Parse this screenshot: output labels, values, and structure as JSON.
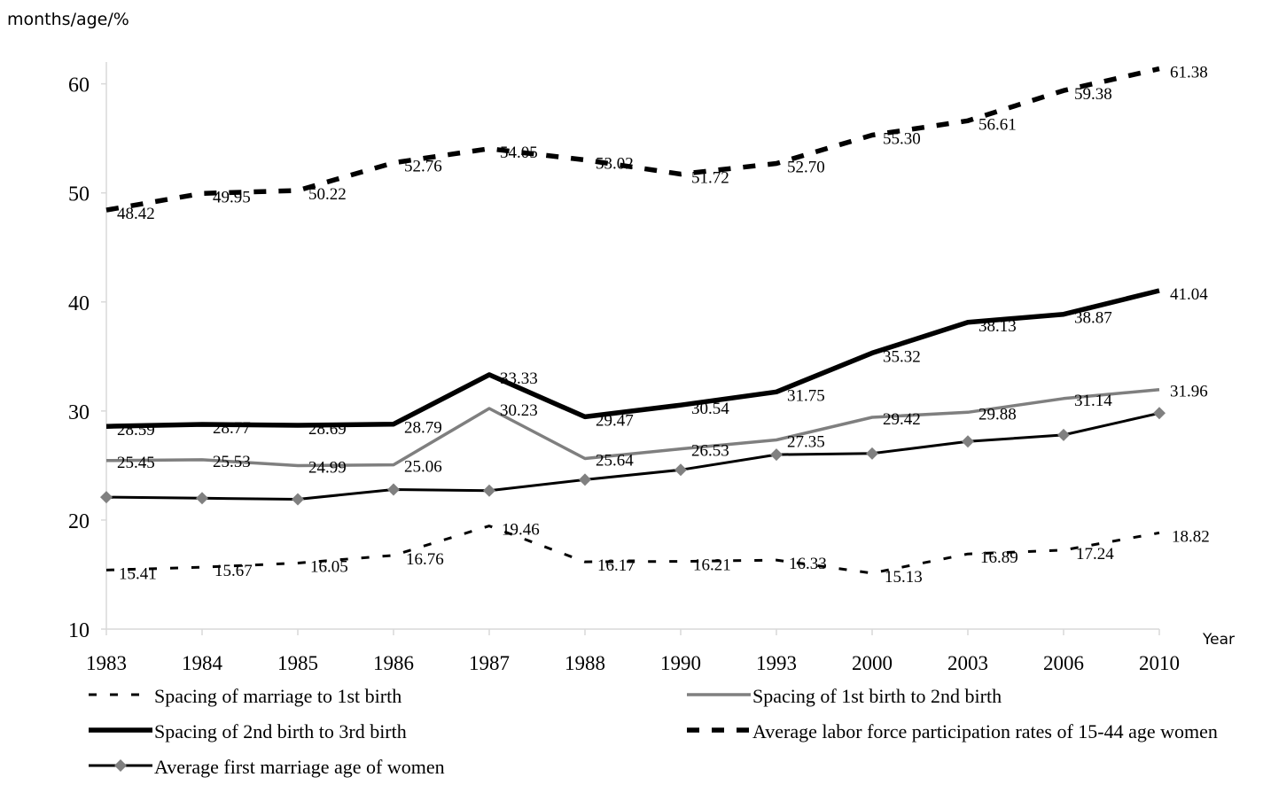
{
  "chart_data": {
    "type": "line",
    "ylabel": "months/age/%",
    "xlabel": "Year",
    "ylim": [
      10,
      62
    ],
    "yticks": [
      10,
      20,
      30,
      40,
      50,
      60
    ],
    "grid": false,
    "legend_position": "bottom",
    "categories": [
      "1983",
      "1984",
      "1985",
      "1986",
      "1987",
      "1988",
      "1990",
      "1993",
      "2000",
      "2003",
      "2006",
      "2010"
    ],
    "series": [
      {
        "name": "Spacing of marriage to 1st birth",
        "values": [
          15.41,
          15.67,
          16.05,
          16.76,
          19.46,
          16.17,
          16.21,
          16.33,
          15.13,
          16.89,
          17.24,
          18.82
        ],
        "labels": [
          "15.41",
          "15.67",
          "16.05",
          "16.76",
          "19.46",
          "16.17",
          "16.21",
          "16.33",
          "15.13",
          "16.89",
          "17.24",
          "18.82"
        ],
        "style": "dotted",
        "color": "#000000"
      },
      {
        "name": "Spacing of 1st birth to 2nd birth",
        "values": [
          25.45,
          25.53,
          24.99,
          25.06,
          30.23,
          25.64,
          26.53,
          27.35,
          29.42,
          29.88,
          31.14,
          31.96
        ],
        "labels": [
          "25.45",
          "25.53",
          "24.99",
          "25.06",
          "30.23",
          "25.64",
          "26.53",
          "27.35",
          "29.42",
          "29.88",
          "31.14",
          "31.96"
        ],
        "style": "solid-gray",
        "color": "#7f7f7f"
      },
      {
        "name": "Spacing of 2nd birth to 3rd birth",
        "values": [
          28.59,
          28.77,
          28.69,
          28.79,
          33.33,
          29.47,
          30.54,
          31.75,
          35.32,
          38.13,
          38.87,
          41.04
        ],
        "labels": [
          "28.59",
          "28.77",
          "28.69",
          "28.79",
          "33.33",
          "29.47",
          "30.54",
          "31.75",
          "35.32",
          "38.13",
          "38.87",
          "41.04"
        ],
        "style": "solid-thick",
        "color": "#000000"
      },
      {
        "name": "Average labor force participation rates of 15-44 age women",
        "values": [
          48.42,
          49.95,
          50.22,
          52.76,
          54.05,
          53.02,
          51.72,
          52.7,
          55.3,
          56.61,
          59.38,
          61.38
        ],
        "labels": [
          "48.42",
          "49.95",
          "50.22",
          "52.76",
          "54.05",
          "53.02",
          "51.72",
          "52.70",
          "55.30",
          "56.61",
          "59.38",
          "61.38"
        ],
        "style": "dashed-thick",
        "color": "#000000"
      },
      {
        "name": "Average first marriage age of women",
        "values": [
          22.1,
          22.0,
          21.9,
          22.8,
          22.7,
          23.7,
          24.6,
          26.0,
          26.1,
          27.2,
          27.8,
          29.8
        ],
        "labels": [],
        "style": "solid-diamond",
        "color": "#000000",
        "marker_color": "#808080"
      }
    ]
  }
}
